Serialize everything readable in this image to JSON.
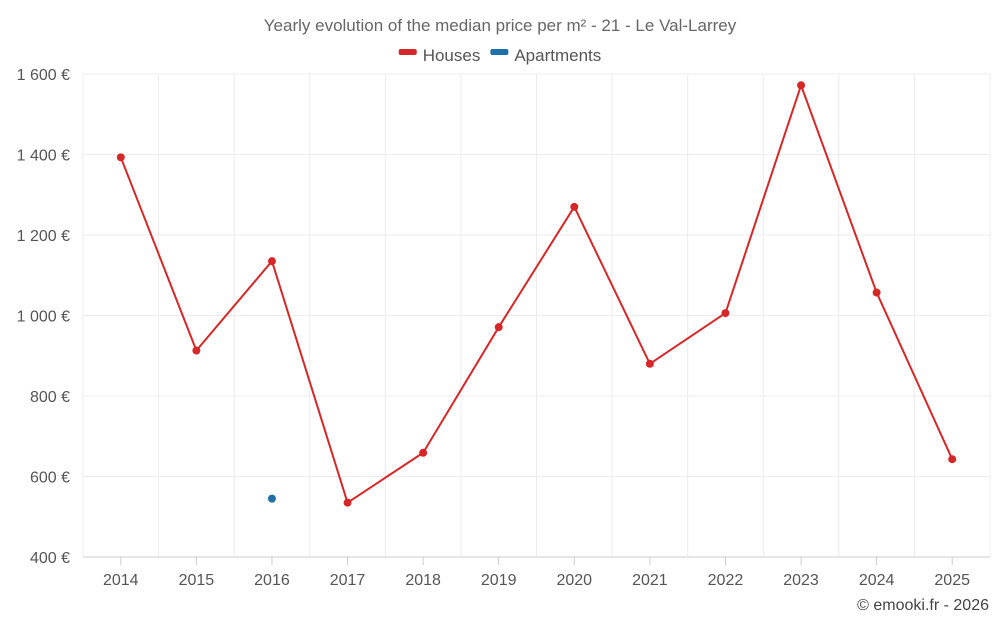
{
  "chart_data": {
    "type": "line",
    "title": "Yearly evolution of the median price per m² - 21 - Le Val-Larrey",
    "categories": [
      "2014",
      "2015",
      "2016",
      "2017",
      "2018",
      "2019",
      "2020",
      "2021",
      "2022",
      "2023",
      "2024",
      "2025"
    ],
    "series": [
      {
        "name": "Houses",
        "color": "#d62728",
        "values": [
          1393,
          913,
          1135,
          535,
          659,
          971,
          1270,
          880,
          1006,
          1572,
          1057,
          643
        ]
      },
      {
        "name": "Apartments",
        "color": "#1f6fa8",
        "values": [
          null,
          null,
          545,
          null,
          null,
          null,
          null,
          null,
          null,
          null,
          null,
          null
        ]
      }
    ],
    "ylim": [
      400,
      1600
    ],
    "y_ticks": [
      400,
      600,
      800,
      1000,
      1200,
      1400,
      1600
    ],
    "y_tick_labels": [
      "400 €",
      "600 €",
      "800 €",
      "1 000 €",
      "1 200 €",
      "1 400 €",
      "1 600 €"
    ],
    "legend_position": "top-center",
    "grid": true,
    "xlabel": "",
    "ylabel": "",
    "credit": "© emooki.fr - 2026"
  }
}
